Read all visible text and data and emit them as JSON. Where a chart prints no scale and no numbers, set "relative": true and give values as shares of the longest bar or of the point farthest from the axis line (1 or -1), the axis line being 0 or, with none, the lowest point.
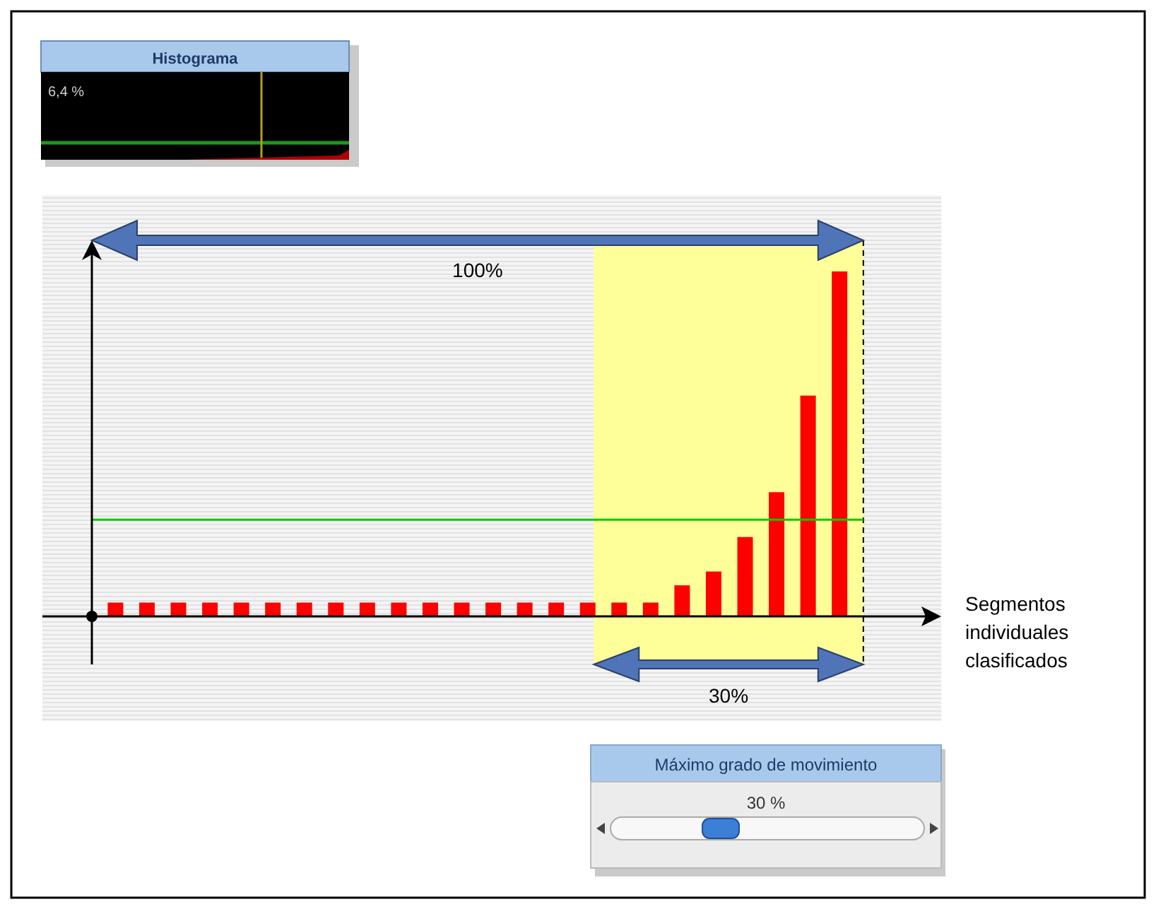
{
  "chart_data": {
    "type": "bar",
    "relative": true,
    "categories": [
      null,
      null,
      null,
      null,
      null,
      null,
      null,
      null,
      null,
      null,
      null,
      null,
      null,
      null,
      null,
      null,
      null,
      null,
      null,
      null,
      null,
      null,
      null,
      null
    ],
    "color": "#ff0000",
    "values": [
      0.04,
      0.04,
      0.04,
      0.04,
      0.04,
      0.04,
      0.04,
      0.04,
      0.04,
      0.04,
      0.04,
      0.04,
      0.04,
      0.04,
      0.04,
      0.04,
      0.04,
      0.04,
      0.09,
      0.13,
      0.23,
      0.36,
      0.64,
      1
    ],
    "ref_lines": [
      {
        "axis": "y",
        "value": 0.28,
        "color": "#00cc00"
      }
    ],
    "annotations": [
      "100%",
      "30%",
      "Histograma",
      "6,4 %",
      "Máximo grado de movimiento",
      "30 %",
      "Segmentos individuales clasificados"
    ]
  }
}
